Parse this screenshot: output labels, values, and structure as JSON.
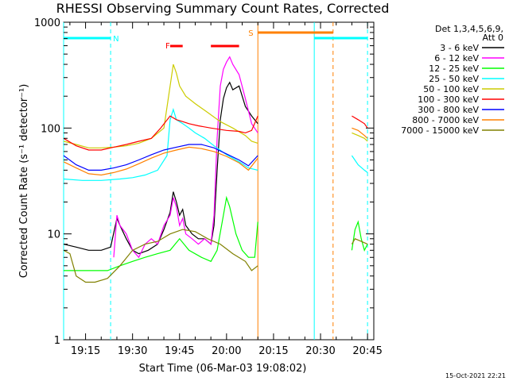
{
  "chart_data": {
    "type": "line",
    "title": "RHESSI Observing Summary Count Rates, Corrected",
    "xlabel": "Start Time (06-Mar-03 19:08:02)",
    "ylabel": "Corrected Count Rate (s⁻¹ detector⁻¹)",
    "y_scale": "log",
    "ylim": [
      1,
      1000
    ],
    "xlim_min": [
      8,
      107
    ],
    "x_ticks": [
      {
        "min": 15,
        "label": "19:15"
      },
      {
        "min": 30,
        "label": "19:30"
      },
      {
        "min": 45,
        "label": "19:45"
      },
      {
        "min": 60,
        "label": "20:00"
      },
      {
        "min": 75,
        "label": "20:15"
      },
      {
        "min": 90,
        "label": "20:30"
      },
      {
        "min": 105,
        "label": "20:45"
      }
    ],
    "y_ticks": [
      {
        "value": 1,
        "label": "1"
      },
      {
        "value": 10,
        "label": "10"
      },
      {
        "value": 100,
        "label": "100"
      },
      {
        "value": 1000,
        "label": "1000"
      }
    ],
    "legend_title": [
      "Det 1,3,4,5,6,9,",
      "Att 0"
    ],
    "legend_position": "right",
    "series": [
      {
        "name": "3 - 6 keV",
        "color": "#000000",
        "segments": [
          [
            [
              8,
              8
            ],
            [
              12,
              7.5
            ],
            [
              16,
              7
            ],
            [
              20,
              7
            ],
            [
              23,
              7.5
            ],
            [
              25,
              14
            ],
            [
              26,
              12
            ],
            [
              28,
              9
            ],
            [
              30,
              7
            ],
            [
              32,
              6.5
            ],
            [
              35,
              7
            ],
            [
              38,
              8
            ],
            [
              40,
              11
            ],
            [
              42,
              16
            ],
            [
              43,
              25
            ],
            [
              44,
              20
            ],
            [
              45,
              15
            ],
            [
              46,
              17
            ],
            [
              47,
              12
            ],
            [
              49,
              10
            ],
            [
              51,
              9
            ],
            [
              53,
              9
            ],
            [
              55,
              8
            ],
            [
              56,
              12
            ],
            [
              57,
              40
            ],
            [
              58,
              120
            ],
            [
              59,
              190
            ],
            [
              60,
              240
            ],
            [
              61,
              270
            ],
            [
              62,
              230
            ],
            [
              64,
              250
            ],
            [
              66,
              160
            ],
            [
              68,
              130
            ],
            [
              70,
              110
            ]
          ]
        ]
      },
      {
        "name": "6 - 12 keV",
        "color": "#ff00ff",
        "segments": [
          [
            [
              24,
              6
            ],
            [
              25,
              15
            ],
            [
              26,
              12
            ],
            [
              28,
              10
            ],
            [
              30,
              7
            ],
            [
              32,
              6
            ],
            [
              34,
              8
            ],
            [
              36,
              9
            ],
            [
              38,
              8
            ],
            [
              40,
              12
            ],
            [
              42,
              15
            ],
            [
              43,
              22
            ],
            [
              44,
              18
            ],
            [
              45,
              12
            ],
            [
              46,
              14
            ],
            [
              47,
              10
            ],
            [
              49,
              9
            ],
            [
              51,
              8
            ],
            [
              53,
              9
            ],
            [
              55,
              8
            ],
            [
              56,
              15
            ],
            [
              57,
              80
            ],
            [
              58,
              250
            ],
            [
              59,
              360
            ],
            [
              60,
              420
            ],
            [
              61,
              470
            ],
            [
              62,
              400
            ],
            [
              64,
              320
            ],
            [
              66,
              190
            ],
            [
              68,
              110
            ],
            [
              70,
              90
            ]
          ]
        ]
      },
      {
        "name": "12 - 25 keV",
        "color": "#00ff00",
        "segments": [
          [
            [
              8,
              4.5
            ],
            [
              14,
              4.5
            ],
            [
              18,
              4.5
            ],
            [
              22,
              4.5
            ],
            [
              26,
              5
            ],
            [
              30,
              5.5
            ],
            [
              34,
              6
            ],
            [
              38,
              6.5
            ],
            [
              42,
              7
            ],
            [
              45,
              9
            ],
            [
              48,
              7
            ],
            [
              52,
              6
            ],
            [
              55,
              5.5
            ],
            [
              57,
              7
            ],
            [
              59,
              15
            ],
            [
              60,
              22
            ],
            [
              61,
              18
            ],
            [
              63,
              10
            ],
            [
              65,
              7
            ],
            [
              67,
              6
            ],
            [
              69,
              6
            ],
            [
              70,
              13
            ]
          ],
          [
            [
              100,
              7
            ],
            [
              101,
              11
            ],
            [
              102,
              13
            ],
            [
              103,
              9
            ],
            [
              104,
              7
            ],
            [
              105,
              8
            ]
          ]
        ]
      },
      {
        "name": "25 - 50 keV",
        "color": "#00ffff",
        "segments": [
          [
            [
              8,
              33
            ],
            [
              14,
              32
            ],
            [
              20,
              32
            ],
            [
              26,
              33
            ],
            [
              30,
              34
            ],
            [
              34,
              36
            ],
            [
              38,
              40
            ],
            [
              41,
              55
            ],
            [
              42,
              120
            ],
            [
              43,
              150
            ],
            [
              44,
              120
            ],
            [
              46,
              110
            ],
            [
              48,
              100
            ],
            [
              50,
              90
            ],
            [
              53,
              80
            ],
            [
              56,
              68
            ],
            [
              60,
              56
            ],
            [
              64,
              48
            ],
            [
              67,
              42
            ],
            [
              70,
              40
            ]
          ],
          [
            [
              100,
              55
            ],
            [
              102,
              45
            ],
            [
              104,
              40
            ],
            [
              105,
              38
            ]
          ]
        ]
      },
      {
        "name": "50 - 100 keV",
        "color": "#cccc00",
        "segments": [
          [
            [
              8,
              75
            ],
            [
              12,
              70
            ],
            [
              16,
              65
            ],
            [
              20,
              65
            ],
            [
              24,
              66
            ],
            [
              28,
              68
            ],
            [
              32,
              72
            ],
            [
              36,
              80
            ],
            [
              40,
              100
            ],
            [
              42,
              250
            ],
            [
              43,
              400
            ],
            [
              44,
              330
            ],
            [
              45,
              250
            ],
            [
              47,
              200
            ],
            [
              50,
              170
            ],
            [
              54,
              140
            ],
            [
              58,
              115
            ],
            [
              62,
              100
            ],
            [
              66,
              85
            ],
            [
              68,
              75
            ],
            [
              70,
              72
            ]
          ],
          [
            [
              100,
              90
            ],
            [
              102,
              85
            ],
            [
              104,
              80
            ],
            [
              105,
              75
            ]
          ]
        ]
      },
      {
        "name": "100 - 300 keV",
        "color": "#ff0000",
        "segments": [
          [
            [
              8,
              80
            ],
            [
              12,
              68
            ],
            [
              16,
              62
            ],
            [
              20,
              62
            ],
            [
              24,
              66
            ],
            [
              28,
              70
            ],
            [
              32,
              75
            ],
            [
              36,
              80
            ],
            [
              39,
              100
            ],
            [
              42,
              130
            ],
            [
              44,
              120
            ],
            [
              46,
              115
            ],
            [
              48,
              110
            ],
            [
              51,
              105
            ],
            [
              55,
              100
            ],
            [
              60,
              95
            ],
            [
              64,
              93
            ],
            [
              66,
              90
            ],
            [
              68,
              95
            ],
            [
              70,
              130
            ]
          ],
          [
            [
              100,
              130
            ],
            [
              102,
              120
            ],
            [
              104,
              110
            ],
            [
              105,
              100
            ]
          ]
        ]
      },
      {
        "name": "300 - 800 keV",
        "color": "#0000ff",
        "segments": [
          [
            [
              8,
              55
            ],
            [
              12,
              45
            ],
            [
              16,
              40
            ],
            [
              20,
              40
            ],
            [
              24,
              42
            ],
            [
              28,
              45
            ],
            [
              32,
              50
            ],
            [
              36,
              56
            ],
            [
              40,
              62
            ],
            [
              44,
              66
            ],
            [
              48,
              70
            ],
            [
              52,
              70
            ],
            [
              56,
              65
            ],
            [
              60,
              57
            ],
            [
              64,
              50
            ],
            [
              67,
              44
            ],
            [
              70,
              55
            ]
          ]
        ]
      },
      {
        "name": "800 - 7000 keV",
        "color": "#ff8000",
        "segments": [
          [
            [
              8,
              48
            ],
            [
              12,
              42
            ],
            [
              16,
              37
            ],
            [
              20,
              36
            ],
            [
              24,
              38
            ],
            [
              28,
              41
            ],
            [
              32,
              46
            ],
            [
              36,
              52
            ],
            [
              40,
              58
            ],
            [
              44,
              62
            ],
            [
              48,
              66
            ],
            [
              52,
              64
            ],
            [
              56,
              60
            ],
            [
              60,
              54
            ],
            [
              64,
              47
            ],
            [
              67,
              40
            ],
            [
              70,
              52
            ]
          ],
          [
            [
              100,
              100
            ],
            [
              102,
              95
            ],
            [
              104,
              85
            ],
            [
              105,
              80
            ]
          ]
        ]
      },
      {
        "name": "7000 - 15000 keV",
        "color": "#808000",
        "segments": [
          [
            [
              8,
              7
            ],
            [
              10,
              6.5
            ],
            [
              12,
              4
            ],
            [
              15,
              3.5
            ],
            [
              18,
              3.5
            ],
            [
              22,
              3.8
            ],
            [
              26,
              5
            ],
            [
              30,
              7
            ],
            [
              34,
              8
            ],
            [
              38,
              8.5
            ],
            [
              42,
              10
            ],
            [
              46,
              11
            ],
            [
              50,
              10.5
            ],
            [
              54,
              9
            ],
            [
              58,
              8
            ],
            [
              62,
              6.5
            ],
            [
              66,
              5.5
            ],
            [
              68,
              4.5
            ],
            [
              70,
              5
            ]
          ],
          [
            [
              100,
              8
            ],
            [
              101,
              9
            ],
            [
              103,
              8.5
            ],
            [
              105,
              8
            ]
          ]
        ]
      }
    ],
    "annotations": [
      {
        "label": "N",
        "color": "#00ffff",
        "x_range": [
          8,
          23
        ],
        "vertical_lines": [
          8,
          23
        ]
      },
      {
        "label": "F",
        "color": "#ff0000",
        "bars": [
          [
            42,
            46
          ],
          [
            55,
            64
          ]
        ]
      },
      {
        "label": "S",
        "color": "#ff8000",
        "x_range": [
          70,
          94
        ],
        "vertical_lines": [
          70,
          94
        ]
      },
      {
        "label": "",
        "color": "#00ffff",
        "x_range": [
          88,
          105
        ],
        "vertical_lines": [
          88,
          105
        ]
      }
    ],
    "footer_date": "15-Oct-2021 22:21"
  }
}
